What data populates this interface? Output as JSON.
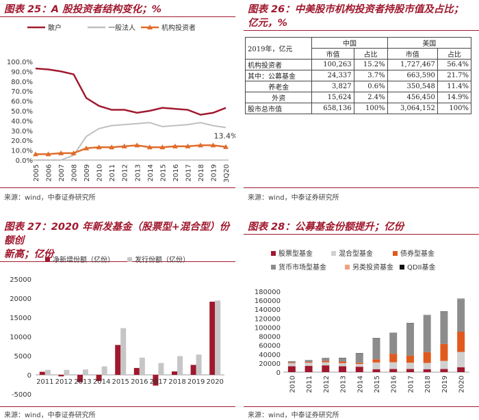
{
  "panels": {
    "p25": {
      "title": "图表 25：A 股投资者结构变化；%",
      "source": "来源：wind，中泰证券研究所"
    },
    "p26": {
      "title_line1": "图表 26：中美股市机构投资者持股市值及占比；",
      "title_line2": "亿元，%",
      "source": "来源：wind，中泰证券研究所"
    },
    "p27": {
      "title_line1": "图表 27：2020 年新发基金（股票型+混合型）份额创",
      "title_line2": "新高；亿份",
      "source": "来源：wind，中泰证券研究所"
    },
    "p28": {
      "title": "图表 28：公募基金份额提升；亿份",
      "source": "来源：wind，中泰证券研究所"
    }
  },
  "table26": {
    "corner": "2019年，亿元",
    "country_cn": "中国",
    "country_us": "美国",
    "col_value": "市值",
    "col_share": "占比",
    "rows": [
      {
        "label": "机构投资者",
        "cn_v": "100,263",
        "cn_s": "15.2%",
        "us_v": "1,727,467",
        "us_s": "56.4%"
      },
      {
        "label": "其中：公募基金",
        "cn_v": "24,337",
        "cn_s": "3.7%",
        "us_v": "663,590",
        "us_s": "21.7%"
      },
      {
        "label": "养老金",
        "cn_v": "3,827",
        "cn_s": "0.6%",
        "us_v": "350,548",
        "us_s": "11.4%"
      },
      {
        "label": "外资",
        "cn_v": "15,624",
        "cn_s": "2.4%",
        "us_v": "456,450",
        "us_s": "14.9%"
      },
      {
        "label": "股市总市值",
        "cn_v": "658,136",
        "cn_s": "100%",
        "us_v": "3,064,152",
        "us_s": "100%"
      }
    ]
  },
  "chart_data": [
    {
      "type": "line",
      "x": [
        "2005",
        "2006",
        "2007",
        "2008",
        "2009",
        "2010",
        "2011",
        "2012",
        "2013",
        "2014",
        "2015",
        "2016",
        "2017",
        "2018",
        "2019",
        "3Q20"
      ],
      "ylim": [
        0,
        100
      ],
      "yticks": [
        "0.0%",
        "10.0%",
        "20.0%",
        "30.0%",
        "40.0%",
        "50.0%",
        "60.0%",
        "70.0%",
        "80.0%",
        "90.0%",
        "100.0%"
      ],
      "legend": [
        "散户",
        "一般法人",
        "机构投资者"
      ],
      "annotation": "13.4%",
      "series": [
        {
          "name": "散户",
          "color": "#a0182e",
          "values": [
            93,
            92,
            90,
            87,
            63,
            55,
            51,
            51,
            48,
            50,
            53,
            52,
            51,
            46,
            48,
            53
          ]
        },
        {
          "name": "一般法人",
          "color": "#bfbfbf",
          "values": [
            0,
            0,
            0,
            5,
            24,
            32,
            35,
            36,
            37,
            38,
            34,
            35,
            36,
            38,
            35,
            33
          ]
        },
        {
          "name": "机构投资者",
          "color": "#e06b2a",
          "values": [
            6,
            6,
            7,
            7,
            12,
            13,
            13,
            14,
            15,
            13,
            13,
            14,
            14,
            15,
            15,
            13.4
          ]
        }
      ]
    },
    {
      "type": "bar",
      "categories": [
        "2011",
        "2012",
        "2013",
        "2014",
        "2015",
        "2016",
        "2017",
        "2018",
        "2019",
        "2020"
      ],
      "ylim": [
        -5000,
        25000
      ],
      "yticks": [
        "-5000",
        "0",
        "5000",
        "10000",
        "15000",
        "20000",
        "25000"
      ],
      "series": [
        {
          "name": "净新增份额（亿份）",
          "color": "#a0182e",
          "values": [
            800,
            -400,
            -1900,
            -1600,
            7800,
            1800,
            -2800,
            900,
            2600,
            19100
          ]
        },
        {
          "name": "发行份额（亿份）",
          "color": "#c6c6c6",
          "values": [
            1300,
            1300,
            1400,
            2200,
            12200,
            4500,
            3100,
            4900,
            5300,
            19400
          ]
        }
      ]
    },
    {
      "type": "bar",
      "stacked": true,
      "categories": [
        "2010",
        "2011",
        "2012",
        "2013",
        "2014",
        "2015",
        "2016",
        "2017",
        "2018",
        "2019",
        "2020"
      ],
      "ylim": [
        0,
        180000
      ],
      "yticks": [
        "0",
        "20000",
        "40000",
        "60000",
        "80000",
        "100000",
        "120000",
        "140000",
        "160000",
        "180000"
      ],
      "series": [
        {
          "name": "股票型基金",
          "color": "#a0182e",
          "values": [
            13000,
            14000,
            15000,
            13000,
            12000,
            6500,
            7000,
            7000,
            6500,
            7000,
            11000
          ]
        },
        {
          "name": "混合型基金",
          "color": "#d0d0d0",
          "values": [
            7000,
            7000,
            7000,
            7000,
            6000,
            15000,
            15000,
            14000,
            14000,
            18000,
            34000
          ]
        },
        {
          "name": "债券型基金",
          "color": "#e05a1e",
          "values": [
            1500,
            2000,
            3000,
            3500,
            3000,
            7000,
            19000,
            16000,
            24000,
            38000,
            45000
          ]
        },
        {
          "name": "货币市场型基金",
          "color": "#8c8c8c",
          "values": [
            2000,
            3000,
            6000,
            8000,
            21000,
            47000,
            46000,
            72000,
            82000,
            72000,
            73000
          ]
        },
        {
          "name": "另类投资基金",
          "color": "#f2a07f",
          "values": [
            0,
            0,
            0,
            0,
            0,
            0,
            300,
            300,
            300,
            300,
            300
          ]
        },
        {
          "name": "QDII基金",
          "color": "#111111",
          "values": [
            500,
            500,
            500,
            500,
            500,
            500,
            500,
            500,
            500,
            500,
            500
          ]
        }
      ]
    }
  ]
}
